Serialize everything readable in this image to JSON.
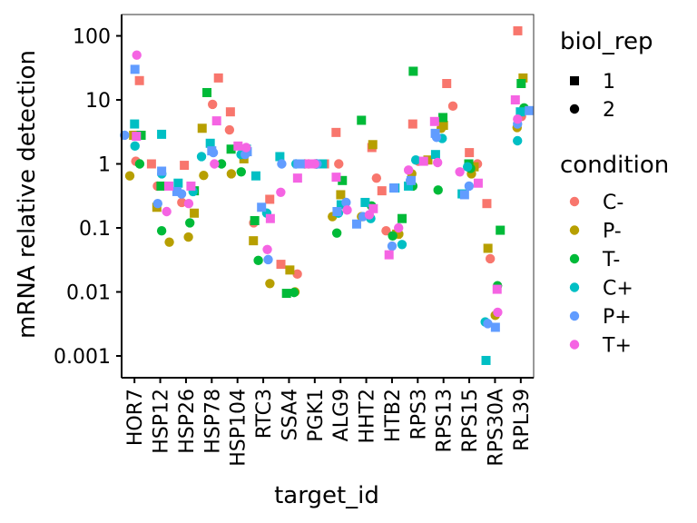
{
  "chart_data": {
    "type": "scatter",
    "xlabel": "target_id",
    "ylabel": "mRNA relative detection",
    "y_scale": "log10",
    "ylim": [
      0.0005,
      200
    ],
    "y_ticks": [
      {
        "value": 100,
        "label": "100"
      },
      {
        "value": 10,
        "label": "10"
      },
      {
        "value": 1,
        "label": "1"
      },
      {
        "value": 0.1,
        "label": "0.1"
      },
      {
        "value": 0.01,
        "label": "0.01"
      },
      {
        "value": 0.001,
        "label": "0.001"
      }
    ],
    "categories": [
      "HOR7",
      "HSP12",
      "HSP26",
      "HSP78",
      "HSP104",
      "RTC3",
      "SSA4",
      "PGK1",
      "ALG9",
      "HHT2",
      "HTB2",
      "RPS3",
      "RPS13",
      "RPS15",
      "RPS30A",
      "RPL39"
    ],
    "shape_legend": {
      "title": "biol_rep",
      "items": [
        {
          "label": "1",
          "shape": "square"
        },
        {
          "label": "2",
          "shape": "circle"
        }
      ]
    },
    "color_legend": {
      "title": "condition",
      "items": [
        {
          "label": "C-",
          "color": "#F8766D"
        },
        {
          "label": "P-",
          "color": "#B79F00"
        },
        {
          "label": "T-",
          "color": "#00BA38"
        },
        {
          "label": "C+",
          "color": "#00BFC4"
        },
        {
          "label": "P+",
          "color": "#619CFF"
        },
        {
          "label": "T+",
          "color": "#F564E3"
        }
      ]
    },
    "series": [
      {
        "condition": "C-",
        "biol_rep": "1",
        "values": [
          20,
          1.0,
          0.95,
          22,
          6.5,
          0.28,
          0.027,
          1.0,
          3.1,
          1.8,
          0.38,
          4.2,
          18,
          1.5,
          0.24,
          120
        ]
      },
      {
        "condition": "C-",
        "biol_rep": "2",
        "values": [
          1.1,
          0.45,
          0.25,
          8.5,
          3.4,
          0.12,
          0.019,
          1.0,
          1.0,
          0.6,
          0.09,
          1.1,
          8.0,
          1.0,
          0.033,
          5.5
        ]
      },
      {
        "condition": "P-",
        "biol_rep": "1",
        "values": [
          2.8,
          0.21,
          0.17,
          3.6,
          1.2,
          0.063,
          0.022,
          1.0,
          0.33,
          2.0,
          0.08,
          1.15,
          4.0,
          0.9,
          0.048,
          22
        ]
      },
      {
        "condition": "P-",
        "biol_rep": "2",
        "values": [
          0.65,
          0.06,
          0.072,
          0.66,
          0.7,
          0.0135,
          0.01,
          1.0,
          0.15,
          0.15,
          0.08,
          0.7,
          3.6,
          0.7,
          0.0043,
          3.7
        ]
      },
      {
        "condition": "T-",
        "biol_rep": "1",
        "values": [
          2.8,
          0.45,
          0.38,
          13,
          1.7,
          0.13,
          0.0095,
          1.0,
          0.55,
          4.8,
          0.14,
          28,
          5.3,
          1.0,
          0.092,
          18
        ]
      },
      {
        "condition": "T-",
        "biol_rep": "2",
        "values": [
          1.0,
          0.09,
          0.12,
          1.0,
          0.75,
          0.031,
          0.0098,
          1.0,
          0.083,
          0.22,
          0.075,
          0.45,
          0.39,
          0.85,
          0.0125,
          7.5
        ]
      },
      {
        "condition": "C+",
        "biol_rep": "1",
        "values": [
          4.2,
          2.9,
          0.5,
          2.1,
          1.7,
          0.65,
          1.3,
          1.0,
          0.23,
          0.25,
          0.42,
          0.45,
          1.4,
          0.34,
          0.00085,
          6.5
        ]
      },
      {
        "condition": "C+",
        "biol_rep": "2",
        "values": [
          1.9,
          0.7,
          0.37,
          1.3,
          1.4,
          0.17,
          1.0,
          1.0,
          0.17,
          0.14,
          0.055,
          1.15,
          2.5,
          0.9,
          0.0034,
          2.3
        ]
      },
      {
        "condition": "P+",
        "biol_rep": "1",
        "values": [
          30,
          0.77,
          0.37,
          1.6,
          1.55,
          0.21,
          1.0,
          1.0,
          0.18,
          0.115,
          0.42,
          0.55,
          3.0,
          0.33,
          0.0028,
          6.8
        ]
      },
      {
        "condition": "P+",
        "biol_rep": "2",
        "values": [
          2.8,
          0.24,
          0.34,
          1.5,
          1.4,
          0.032,
          1.0,
          1.0,
          0.25,
          0.15,
          0.052,
          0.55,
          2.6,
          0.45,
          0.0032,
          4.2
        ]
      },
      {
        "condition": "T+",
        "biol_rep": "1",
        "values": [
          2.7,
          0.45,
          0.45,
          4.7,
          1.9,
          0.14,
          0.6,
          1.0,
          0.62,
          0.2,
          0.038,
          1.1,
          4.6,
          0.5,
          0.011,
          10
        ]
      },
      {
        "condition": "T+",
        "biol_rep": "2",
        "values": [
          50,
          0.18,
          0.24,
          1.0,
          1.8,
          0.046,
          0.36,
          1.0,
          0.19,
          0.16,
          0.1,
          0.8,
          1.05,
          0.75,
          0.0048,
          5.0
        ]
      }
    ]
  }
}
